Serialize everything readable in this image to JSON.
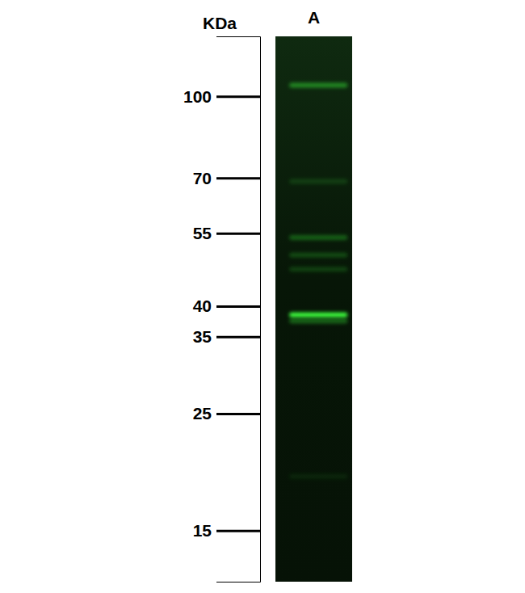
{
  "chart_data": {
    "type": "western_blot",
    "ylabel": "KDa",
    "categories": [
      "A"
    ],
    "log": "y",
    "ylim": [
      130,
      12
    ],
    "yticks": [
      100,
      70,
      55,
      40,
      35,
      25,
      15
    ],
    "color": "#3cff3c",
    "bands": [
      {
        "kda": [
          105,
          69,
          54,
          50,
          47,
          38.5,
          37.5,
          19
        ],
        "intensity": [
          0.45,
          0.15,
          0.3,
          0.22,
          0.18,
          1,
          0.35,
          0.08
        ]
      }
    ]
  }
}
